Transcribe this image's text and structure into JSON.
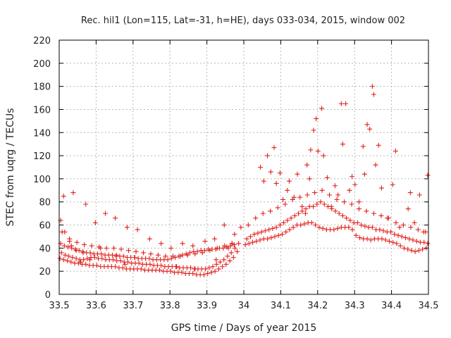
{
  "chart_data": {
    "type": "scatter",
    "title": "Rec. hil1 (Lon=115, Lat=-31, h=HE), days 033-034, 2015, window 002",
    "xlabel": "GPS time / Days of year 2015",
    "ylabel": "STEC from uqrg / TECUs",
    "xlim": [
      33.5,
      34.5
    ],
    "ylim": [
      0,
      220
    ],
    "xticks": [
      "33.5",
      "33.6",
      "33.7",
      "33.8",
      "33.9",
      "34",
      "34.1",
      "34.2",
      "34.3",
      "34.4",
      "34.5"
    ],
    "yticks": [
      "0",
      "20",
      "40",
      "60",
      "80",
      "100",
      "120",
      "140",
      "160",
      "180",
      "200",
      "220"
    ],
    "grid": true,
    "marker": "+",
    "color": "#e0201c",
    "series": [
      {
        "name": "STEC",
        "x": [
          33.502,
          33.512,
          33.522,
          33.532,
          33.542,
          33.552,
          33.562,
          33.572,
          33.582,
          33.592,
          33.602,
          33.612,
          33.622,
          33.632,
          33.642,
          33.652,
          33.662,
          33.672,
          33.682,
          33.692,
          33.702,
          33.712,
          33.722,
          33.732,
          33.742,
          33.752,
          33.762,
          33.772,
          33.782,
          33.792,
          33.802,
          33.812,
          33.822,
          33.832,
          33.842,
          33.852,
          33.862,
          33.872,
          33.882,
          33.892,
          33.902,
          33.912,
          33.922,
          33.932,
          33.942,
          33.952,
          33.962,
          33.972,
          33.982,
          33.506,
          33.516,
          33.526,
          33.536,
          33.546,
          33.556,
          33.566,
          33.576,
          33.586,
          33.596,
          33.606,
          33.616,
          33.626,
          33.636,
          33.646,
          33.656,
          33.666,
          33.676,
          33.686,
          33.696,
          33.706,
          33.716,
          33.726,
          33.736,
          33.746,
          33.756,
          33.766,
          33.776,
          33.786,
          33.796,
          33.806,
          33.816,
          33.826,
          33.836,
          33.846,
          33.856,
          33.866,
          33.876,
          33.886,
          33.896,
          33.906,
          33.916,
          33.926,
          33.936,
          33.946,
          33.956,
          33.966,
          33.976,
          33.986,
          33.504,
          33.514,
          33.524,
          33.534,
          33.544,
          33.554,
          33.564,
          33.574,
          33.584,
          33.594,
          33.604,
          33.614,
          33.624,
          33.634,
          33.644,
          33.654,
          33.664,
          33.674,
          33.684,
          33.694,
          33.704,
          33.714,
          33.724,
          33.734,
          33.744,
          33.754,
          33.764,
          33.774,
          33.784,
          33.794,
          33.804,
          33.814,
          33.824,
          33.834,
          33.844,
          33.854,
          33.864,
          33.874,
          33.884,
          33.894,
          33.904,
          33.914,
          33.924,
          33.934,
          33.944,
          33.954,
          33.964,
          33.974,
          33.508,
          33.528,
          33.548,
          33.568,
          33.588,
          33.608,
          33.628,
          33.648,
          33.668,
          33.688,
          33.708,
          33.728,
          33.748,
          33.768,
          33.788,
          33.808,
          33.828,
          33.848,
          33.868,
          33.888,
          33.908,
          33.928,
          33.948,
          33.968,
          33.504,
          33.515,
          33.528,
          33.533,
          33.546,
          33.558,
          33.565,
          33.583,
          33.612,
          33.655,
          33.678,
          33.705,
          33.818,
          33.868,
          33.925,
          33.958,
          33.968,
          34.004,
          34.014,
          34.024,
          34.034,
          34.044,
          34.054,
          34.064,
          34.074,
          34.084,
          34.094,
          34.104,
          34.114,
          34.124,
          34.134,
          34.144,
          34.154,
          34.164,
          34.174,
          34.184,
          34.194,
          34.204,
          34.214,
          34.224,
          34.234,
          34.244,
          34.254,
          34.264,
          34.274,
          34.284,
          34.294,
          34.304,
          34.314,
          34.324,
          34.334,
          34.344,
          34.354,
          34.364,
          34.374,
          34.384,
          34.394,
          34.404,
          34.414,
          34.424,
          34.434,
          34.444,
          34.454,
          34.464,
          34.474,
          34.484,
          34.494,
          34.008,
          34.018,
          34.028,
          34.038,
          34.048,
          34.058,
          34.068,
          34.078,
          34.088,
          34.098,
          34.108,
          34.118,
          34.128,
          34.138,
          34.148,
          34.158,
          34.168,
          34.178,
          34.188,
          34.198,
          34.208,
          34.218,
          34.228,
          34.238,
          34.248,
          34.258,
          34.268,
          34.278,
          34.288,
          34.298,
          34.308,
          34.318,
          34.328,
          34.338,
          34.348,
          34.358,
          34.368,
          34.378,
          34.388,
          34.398,
          34.408,
          34.418,
          34.428,
          34.438,
          34.448,
          34.458,
          34.468,
          34.478,
          34.488,
          34.498,
          34.012,
          34.032,
          34.052,
          34.072,
          34.092,
          34.112,
          34.132,
          34.152,
          34.172,
          34.192,
          34.212,
          34.232,
          34.252,
          34.272,
          34.292,
          34.312,
          34.332,
          34.352,
          34.372,
          34.392,
          34.412,
          34.432,
          34.452,
          34.472,
          34.492,
          34.045,
          34.064,
          34.082,
          34.098,
          34.123,
          34.145,
          34.171,
          34.181,
          34.196,
          34.201,
          34.211,
          34.226,
          34.247,
          34.264,
          34.276,
          34.293,
          34.301,
          34.323,
          34.334,
          34.348,
          34.352,
          34.365,
          34.403,
          34.411,
          34.451,
          34.476,
          34.498,
          34.054,
          34.073,
          34.088,
          34.106,
          34.118,
          34.136,
          34.158,
          34.167,
          34.178,
          34.189,
          34.216,
          34.237,
          34.255,
          34.268,
          34.286,
          34.312,
          34.327,
          34.341,
          34.357,
          34.373,
          34.389,
          34.422,
          34.445,
          34.462,
          34.487,
          33.512,
          33.538,
          33.572,
          33.598,
          33.625,
          33.652,
          33.684,
          33.712,
          33.745,
          33.776,
          33.803,
          33.834,
          33.862,
          33.895,
          33.921,
          33.947,
          33.975,
          33.992
        ],
        "y": [
          31,
          30,
          29,
          28,
          27,
          27,
          26,
          26,
          25,
          25,
          25,
          24,
          24,
          24,
          24,
          24,
          23,
          23,
          22,
          22,
          22,
          22,
          22,
          21,
          21,
          21,
          21,
          21,
          20,
          20,
          20,
          19,
          19,
          19,
          18,
          18,
          18,
          17,
          17,
          17,
          18,
          19,
          20,
          22,
          24,
          26,
          29,
          32,
          37,
          36,
          34,
          33,
          32,
          31,
          30,
          30,
          31,
          32,
          32,
          31,
          31,
          30,
          30,
          30,
          29,
          29,
          28,
          28,
          27,
          27,
          27,
          26,
          26,
          26,
          25,
          25,
          25,
          24,
          24,
          24,
          24,
          23,
          23,
          23,
          23,
          22,
          22,
          22,
          22,
          23,
          24,
          26,
          28,
          30,
          33,
          36,
          40,
          44,
          44,
          42,
          41,
          40,
          39,
          38,
          37,
          36,
          36,
          35,
          35,
          35,
          34,
          34,
          34,
          33,
          33,
          33,
          32,
          32,
          32,
          31,
          31,
          31,
          31,
          30,
          30,
          30,
          30,
          30,
          31,
          32,
          33,
          34,
          35,
          36,
          37,
          37,
          38,
          38,
          39,
          39,
          39,
          40,
          40,
          41,
          42,
          43,
          54,
          48,
          45,
          43,
          42,
          41,
          40,
          40,
          39,
          38,
          37,
          36,
          35,
          34,
          33,
          33,
          33,
          34,
          35,
          36,
          38,
          40,
          42,
          44,
          64,
          54,
          46,
          42,
          38,
          28,
          36,
          30,
          40,
          34,
          26,
          32,
          24,
          22,
          30,
          40,
          44,
          43,
          44,
          45,
          46,
          47,
          48,
          48,
          49,
          50,
          51,
          52,
          54,
          56,
          58,
          60,
          60,
          61,
          62,
          62,
          60,
          58,
          57,
          56,
          56,
          56,
          57,
          58,
          58,
          58,
          56,
          51,
          49,
          48,
          48,
          47,
          48,
          48,
          48,
          47,
          46,
          45,
          44,
          42,
          40,
          39,
          38,
          37,
          38,
          39,
          40,
          48,
          50,
          52,
          53,
          54,
          55,
          56,
          57,
          58,
          60,
          62,
          64,
          66,
          68,
          70,
          72,
          74,
          76,
          76,
          78,
          80,
          78,
          76,
          74,
          72,
          70,
          68,
          66,
          64,
          62,
          62,
          60,
          59,
          58,
          58,
          56,
          56,
          55,
          54,
          54,
          52,
          51,
          50,
          49,
          48,
          47,
          46,
          45,
          45,
          44,
          60,
          66,
          70,
          72,
          75,
          78,
          82,
          84,
          86,
          88,
          90,
          86,
          82,
          80,
          78,
          74,
          72,
          70,
          68,
          66,
          62,
          60,
          58,
          56,
          54,
          110,
          120,
          127,
          105,
          98,
          104,
          112,
          125,
          152,
          124,
          161,
          101,
          94,
          165,
          165,
          102,
          95,
          128,
          147,
          180,
          173,
          129,
          95,
          124,
          88,
          86,
          103,
          98,
          106,
          96,
          82,
          90,
          84,
          76,
          70,
          100,
          142,
          120,
          76,
          86,
          130,
          90,
          80,
          104,
          143,
          112,
          92,
          66,
          58,
          74,
          62,
          54,
          85,
          88,
          78,
          62,
          70,
          66,
          58,
          56,
          48,
          44,
          40,
          44,
          42,
          46,
          48,
          60,
          52,
          58
        ]
      }
    ]
  }
}
